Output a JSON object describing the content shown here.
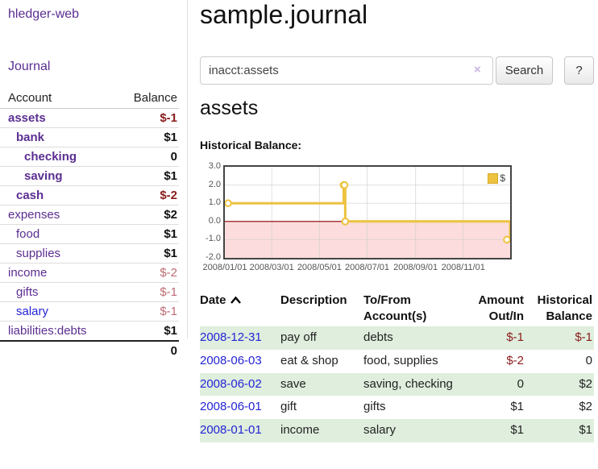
{
  "app": {
    "title": "hledger-web"
  },
  "sidebar": {
    "nav_journal": "Journal",
    "accounts": {
      "header_account": "Account",
      "header_balance": "Balance",
      "rows": [
        {
          "name": "assets",
          "indent": 0,
          "bold": true,
          "balance": "$-1",
          "balance_style": "neg-strong",
          "link_color": "purple"
        },
        {
          "name": "bank",
          "indent": 1,
          "bold": true,
          "balance": "$1",
          "balance_style": "pos",
          "link_color": "purple"
        },
        {
          "name": "checking",
          "indent": 2,
          "bold": true,
          "balance": "0",
          "balance_style": "pos",
          "link_color": "purple"
        },
        {
          "name": "saving",
          "indent": 2,
          "bold": true,
          "balance": "$1",
          "balance_style": "pos",
          "link_color": "purple"
        },
        {
          "name": "cash",
          "indent": 1,
          "bold": true,
          "balance": "$-2",
          "balance_style": "neg-strong",
          "link_color": "purple"
        },
        {
          "name": "expenses",
          "indent": 0,
          "bold": false,
          "balance": "$2",
          "balance_style": "pos",
          "link_color": "purple"
        },
        {
          "name": "food",
          "indent": 1,
          "bold": false,
          "balance": "$1",
          "balance_style": "pos",
          "link_color": "purple"
        },
        {
          "name": "supplies",
          "indent": 1,
          "bold": false,
          "balance": "$1",
          "balance_style": "pos",
          "link_color": "purple"
        },
        {
          "name": "income",
          "indent": 0,
          "bold": false,
          "balance": "$-2",
          "balance_style": "neg",
          "link_color": "purple"
        },
        {
          "name": "gifts",
          "indent": 1,
          "bold": false,
          "balance": "$-1",
          "balance_style": "neg",
          "link_color": "purple"
        },
        {
          "name": "salary",
          "indent": 1,
          "bold": false,
          "balance": "$-1",
          "balance_style": "neg",
          "link_color": "blue"
        },
        {
          "name": "liabilities:debts",
          "indent": 0,
          "bold": false,
          "balance": "$1",
          "balance_style": "pos",
          "link_color": "purple"
        }
      ],
      "total": "0"
    }
  },
  "main": {
    "title": "sample.journal",
    "search": {
      "value": "inacct:assets",
      "clear_icon": "×",
      "button_label": "Search",
      "help_label": "?"
    },
    "account_heading": "assets",
    "chart_title": "Historical Balance:"
  },
  "chart_data": {
    "type": "line",
    "step": true,
    "title": "Historical Balance:",
    "legend": {
      "label": "$",
      "position": "top-right",
      "swatch_color": "#edc240"
    },
    "series": [
      {
        "name": "$",
        "color": "#edc240",
        "points": [
          [
            "2008-01-01",
            1.0
          ],
          [
            "2008-06-01",
            2.0
          ],
          [
            "2008-06-02",
            2.0
          ],
          [
            "2008-06-03",
            0.0
          ],
          [
            "2008-12-31",
            -1.0
          ]
        ]
      }
    ],
    "x_range": [
      "2008-01-01",
      "2008-12-31"
    ],
    "ylim": [
      -2.0,
      3.0
    ],
    "y_ticks": [
      {
        "v": 3.0,
        "label": "3.0"
      },
      {
        "v": 2.0,
        "label": "2.0"
      },
      {
        "v": 1.0,
        "label": "1.0"
      },
      {
        "v": 0.0,
        "label": "0.0"
      },
      {
        "v": -1.0,
        "label": "-1.0"
      },
      {
        "v": -2.0,
        "label": "-2.0"
      }
    ],
    "x_ticks": [
      {
        "date": "2008-01-01",
        "label": "2008/01/01"
      },
      {
        "date": "2008-03-01",
        "label": "2008/03/01"
      },
      {
        "date": "2008-05-01",
        "label": "2008/05/01"
      },
      {
        "date": "2008-07-01",
        "label": "2008/07/01"
      },
      {
        "date": "2008-09-01",
        "label": "2008/09/01"
      },
      {
        "date": "2008-11-01",
        "label": "2008/11/01"
      }
    ],
    "grid": true,
    "zero_line_color": "#8b0000",
    "negative_region_color": "#fcdcdc"
  },
  "register": {
    "headers": {
      "date": "Date",
      "description": "Description",
      "account_line1": "To/From",
      "account_line2": "Account(s)",
      "amount_line1": "Amount",
      "amount_line2": "Out/In",
      "balance_line1": "Historical",
      "balance_line2": "Balance"
    },
    "rows": [
      {
        "date": "2008-12-31",
        "description": "pay off",
        "account": "debts",
        "amount": "$-1",
        "balance": "$-1",
        "green": true
      },
      {
        "date": "2008-06-03",
        "description": "eat & shop",
        "account": "food, supplies",
        "amount": "$-2",
        "balance": "0",
        "green": false
      },
      {
        "date": "2008-06-02",
        "description": "save",
        "account": "saving, checking",
        "amount": "0",
        "balance": "$2",
        "green": true
      },
      {
        "date": "2008-06-01",
        "description": "gift",
        "account": "gifts",
        "amount": "$1",
        "balance": "$2",
        "green": false
      },
      {
        "date": "2008-01-01",
        "description": "income",
        "account": "salary",
        "amount": "$1",
        "balance": "$1",
        "green": true
      }
    ]
  }
}
